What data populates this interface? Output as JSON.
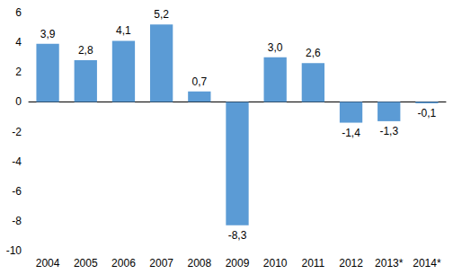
{
  "chart_data": {
    "type": "bar",
    "categories": [
      "2004",
      "2005",
      "2006",
      "2007",
      "2008",
      "2009",
      "2010",
      "2011",
      "2012",
      "2013*",
      "2014*"
    ],
    "values": [
      3.9,
      2.8,
      4.1,
      5.2,
      0.7,
      -8.3,
      3.0,
      2.6,
      -1.4,
      -1.3,
      -0.1
    ],
    "value_labels": [
      "3,9",
      "2,8",
      "4,1",
      "5,2",
      "0,7",
      "-8,3",
      "3,0",
      "2,6",
      "-1,4",
      "-1,3",
      "-0,1"
    ],
    "color": "#5b9bd5",
    "ylim": [
      -10,
      6
    ],
    "yticks": [
      -10,
      -8,
      -6,
      -4,
      -2,
      0,
      2,
      4,
      6
    ],
    "grid": false,
    "data_labels": true
  }
}
